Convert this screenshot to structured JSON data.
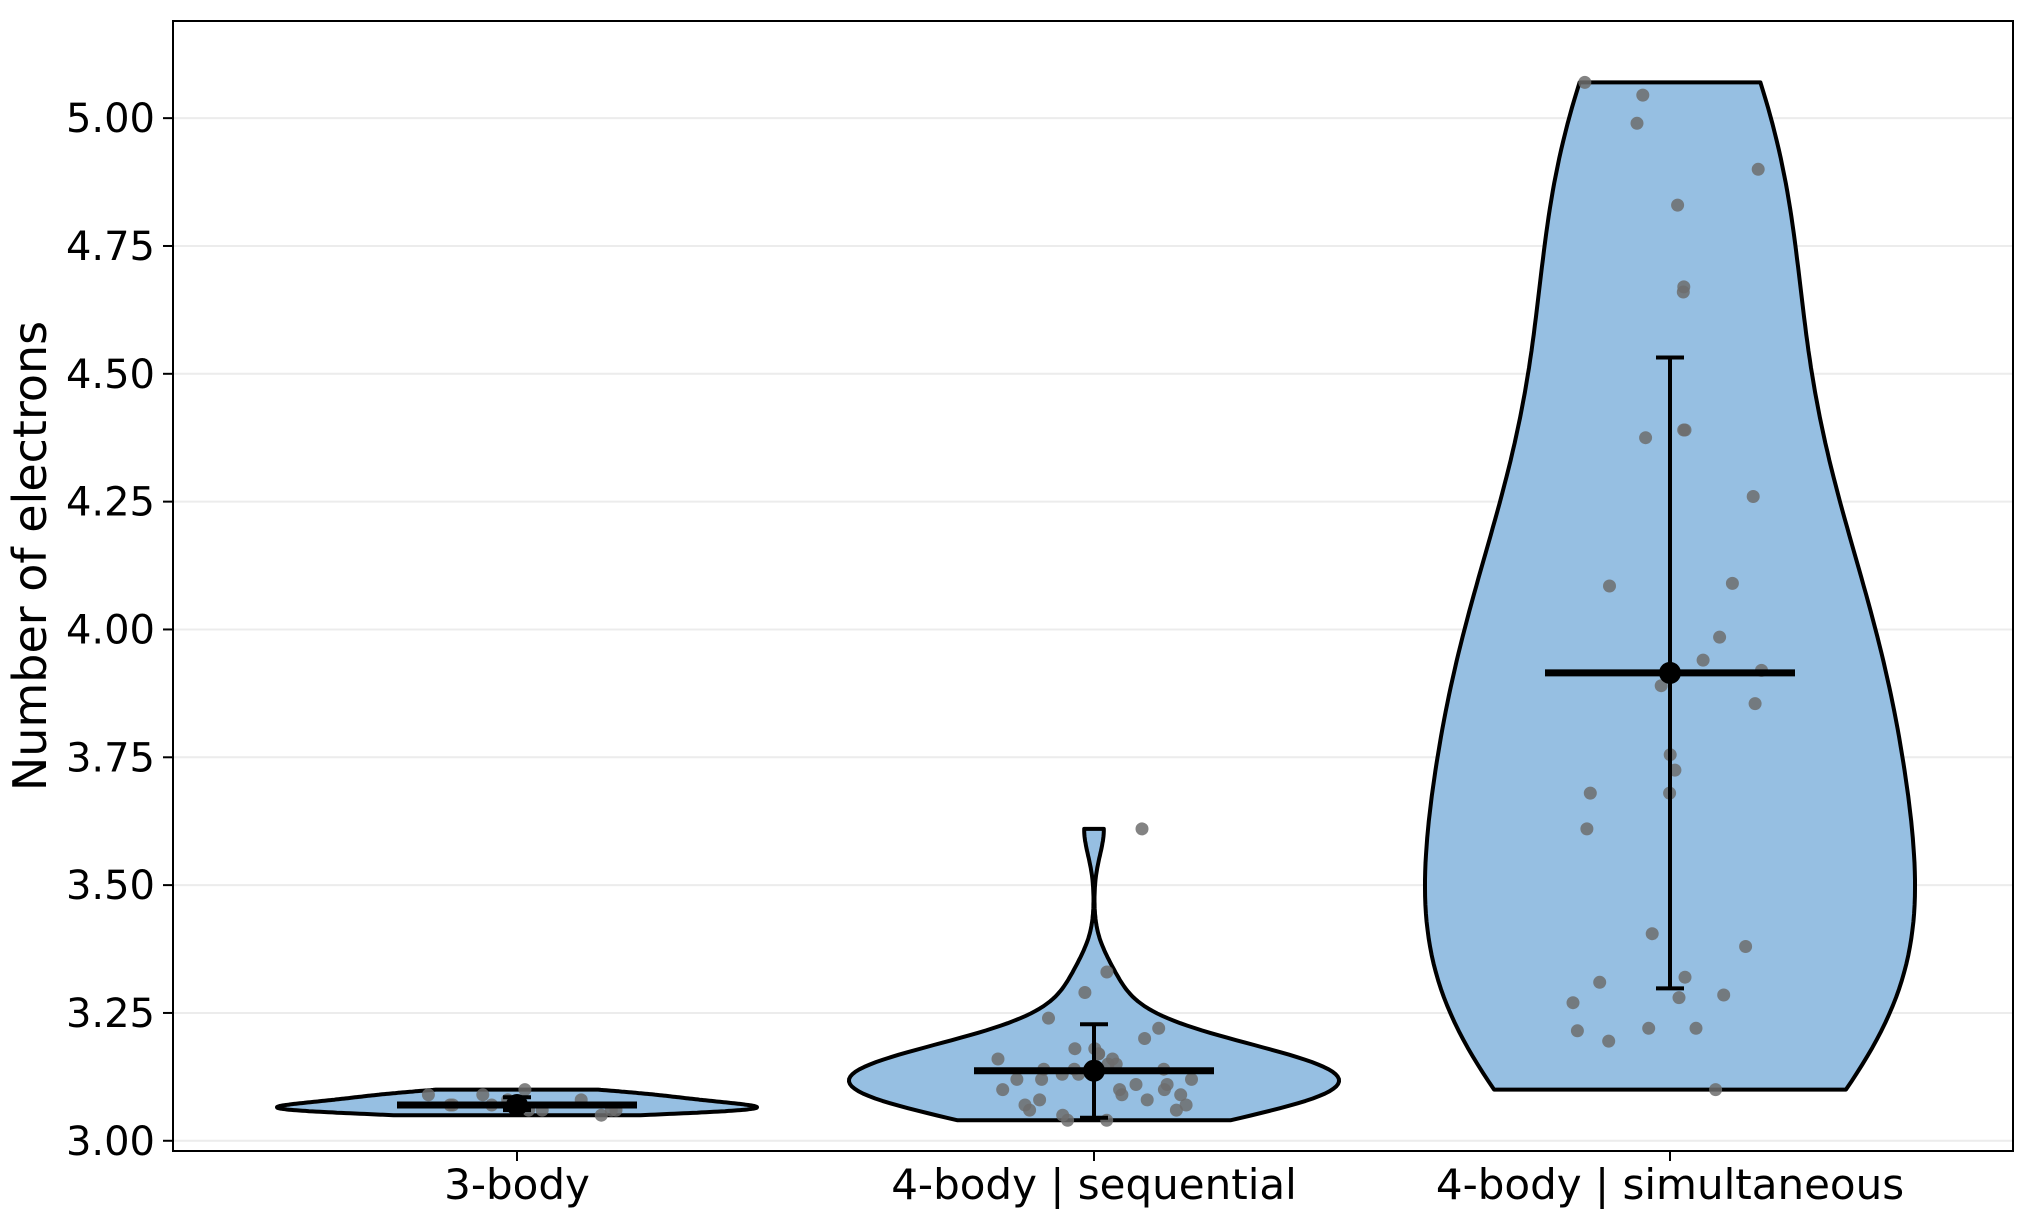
{
  "chart_data": {
    "type": "violin",
    "title": "",
    "xlabel": "",
    "ylabel": "Number of electrons",
    "ylim": [
      2.98,
      5.19
    ],
    "yticks": [
      3.0,
      3.25,
      3.5,
      3.75,
      4.0,
      4.25,
      4.5,
      4.75,
      5.0
    ],
    "ytick_labels": [
      "3.00",
      "3.25",
      "3.50",
      "3.75",
      "4.00",
      "4.25",
      "4.50",
      "4.75",
      "5.00"
    ],
    "grid": "horizontal",
    "categories": [
      "3-body",
      "4-body | sequential",
      "4-body | simultaneous"
    ],
    "colors": {
      "violin_fill": "#96bfe2",
      "outline": "#000000",
      "points": "#6d6d6d",
      "grid": "#ececec"
    },
    "groups": [
      {
        "category": "3-body",
        "mean": 3.07,
        "error": [
          3.06,
          3.085
        ],
        "range": [
          3.05,
          3.1
        ],
        "points": [
          3.05,
          3.09,
          3.06,
          3.07,
          3.08,
          3.06,
          3.07,
          3.09,
          3.1,
          3.06,
          3.08,
          3.07,
          3.06
        ]
      },
      {
        "category": "4-body | sequential",
        "mean": 3.137,
        "error": [
          3.045,
          3.228
        ],
        "range": [
          3.04,
          3.61
        ],
        "points": [
          3.61,
          3.33,
          3.29,
          3.24,
          3.22,
          3.2,
          3.18,
          3.17,
          3.17,
          3.16,
          3.16,
          3.15,
          3.14,
          3.14,
          3.13,
          3.13,
          3.12,
          3.12,
          3.11,
          3.11,
          3.1,
          3.1,
          3.1,
          3.09,
          3.08,
          3.08,
          3.07,
          3.06,
          3.06,
          3.05,
          3.04,
          3.04,
          3.18,
          3.15,
          3.12,
          3.09,
          3.07,
          3.14
        ]
      },
      {
        "category": "4-body | simultaneous",
        "mean": 3.915,
        "error": [
          3.298,
          4.532
        ],
        "range": [
          3.1,
          5.07
        ],
        "points": [
          5.07,
          5.045,
          4.99,
          4.9,
          4.83,
          4.67,
          4.66,
          4.39,
          4.39,
          4.375,
          4.26,
          4.09,
          4.085,
          3.985,
          3.94,
          3.92,
          3.89,
          3.855,
          3.755,
          3.725,
          3.68,
          3.68,
          3.61,
          3.405,
          3.38,
          3.32,
          3.31,
          3.28,
          3.285,
          3.27,
          3.22,
          3.215,
          3.22,
          3.195,
          3.1
        ]
      }
    ]
  }
}
